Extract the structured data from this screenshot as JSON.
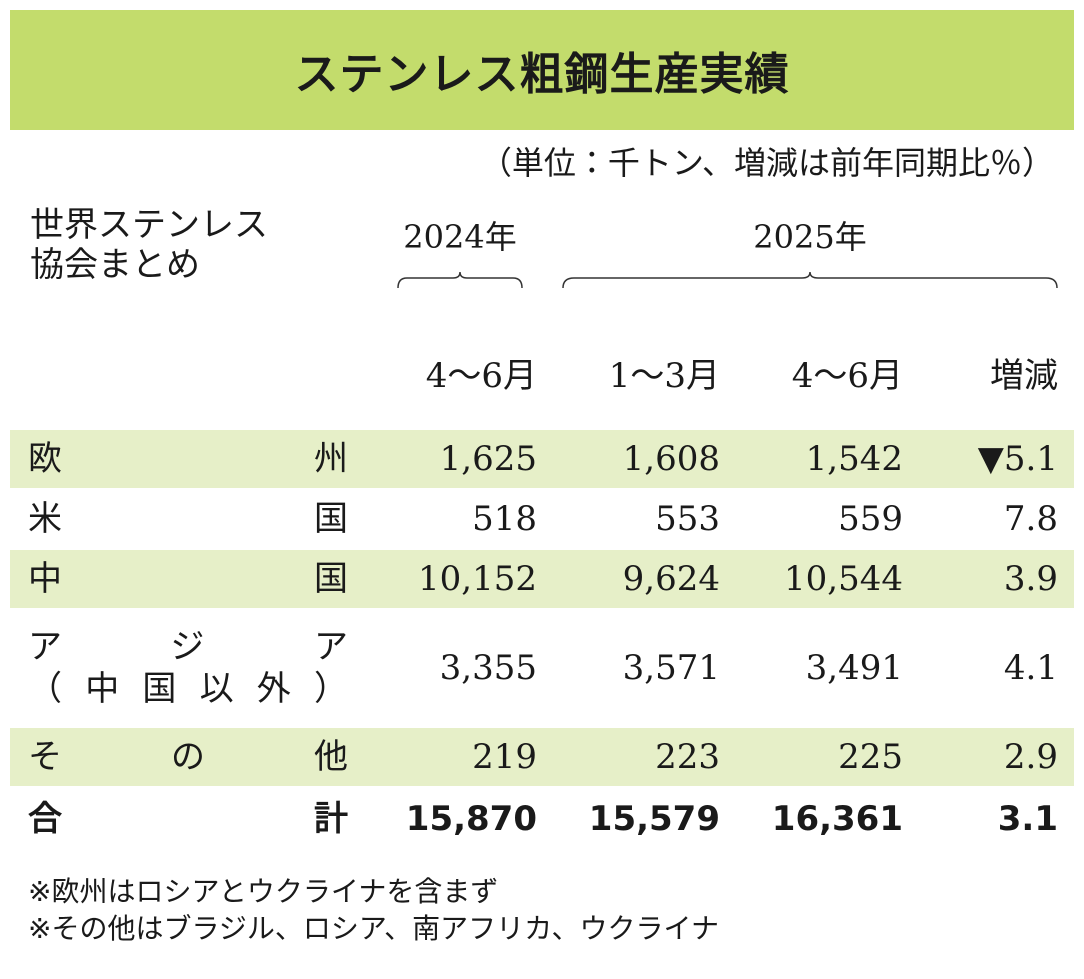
{
  "header": {
    "title": "ステンレス粗鋼生産実績",
    "unit": "（単位：千トン、増減は前年同期比％）",
    "source": [
      "世界ステンレス",
      "協会まとめ"
    ],
    "years": [
      "2024年",
      "2025年"
    ]
  },
  "table": {
    "columns": [
      "4～6月",
      "1～3月",
      "4～6月",
      "増減"
    ],
    "rows": [
      {
        "label": [
          "欧州"
        ],
        "cells": [
          "1,625",
          "1,608",
          "1,542",
          "▼5.1"
        ]
      },
      {
        "label": [
          "米国"
        ],
        "cells": [
          "518",
          "553",
          "559",
          "7.8"
        ]
      },
      {
        "label": [
          "中国"
        ],
        "cells": [
          "10,152",
          "9,624",
          "10,544",
          "3.9"
        ]
      },
      {
        "label": [
          "アジア",
          "（中国以外）"
        ],
        "cells": [
          "3,355",
          "3,571",
          "3,491",
          "4.1"
        ]
      },
      {
        "label": [
          "その他"
        ],
        "cells": [
          "219",
          "223",
          "225",
          "2.9"
        ]
      },
      {
        "label": [
          "合計"
        ],
        "cells": [
          "15,870",
          "15,579",
          "16,361",
          "3.1"
        ]
      }
    ]
  },
  "notes": [
    "※欧州はロシアとウクライナを含まず",
    "※その他はブラジル、ロシア、南アフリカ、ウクライナ"
  ]
}
